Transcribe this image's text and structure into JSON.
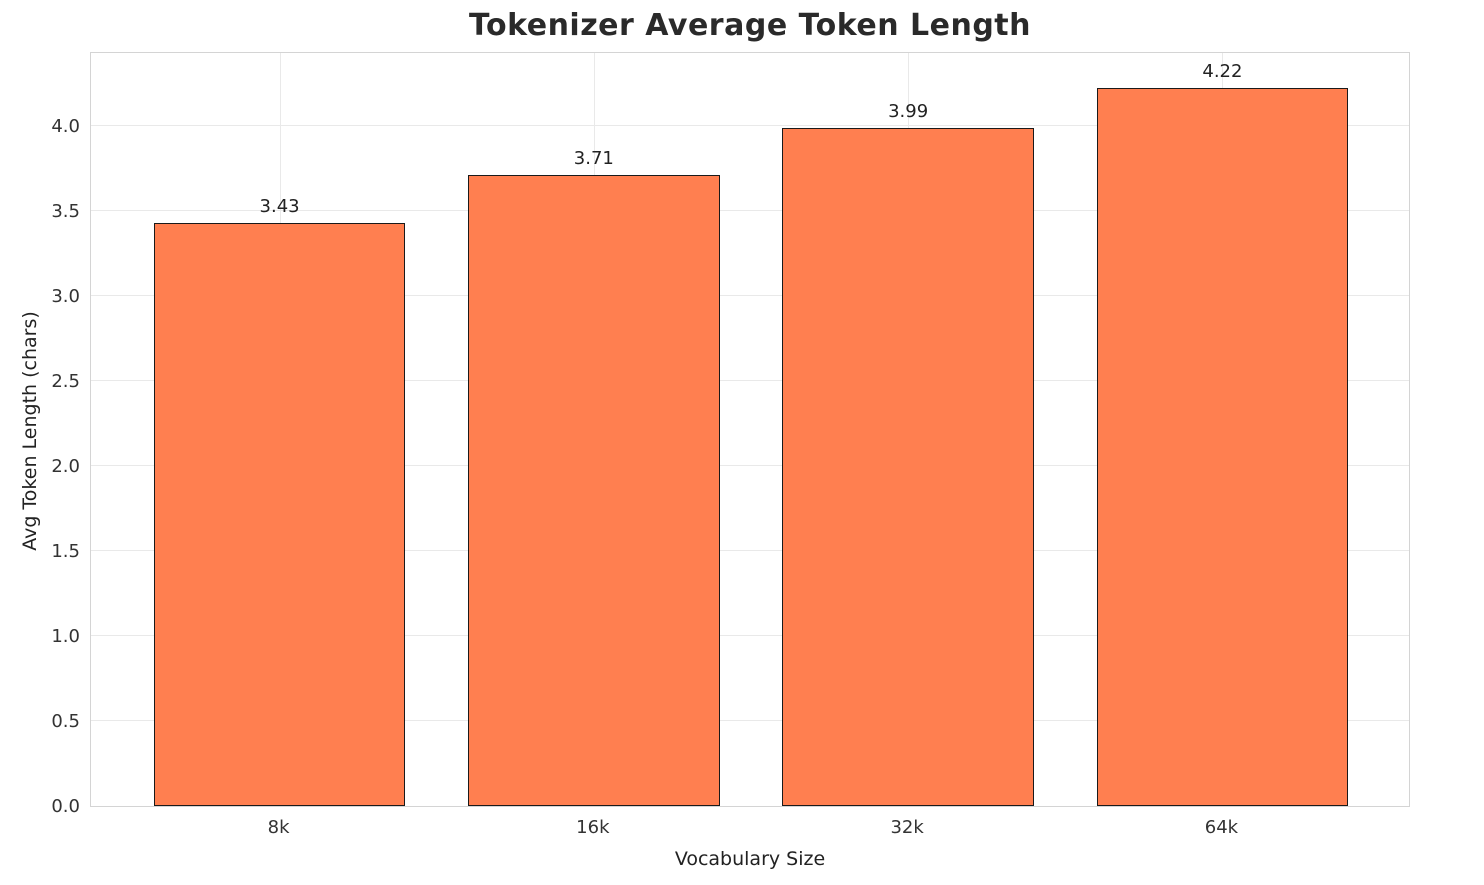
{
  "chart_data": {
    "type": "bar",
    "title": "Tokenizer Average Token Length",
    "xlabel": "Vocabulary Size",
    "ylabel": "Avg Token Length (chars)",
    "categories": [
      "8k",
      "16k",
      "32k",
      "64k"
    ],
    "values": [
      3.43,
      3.71,
      3.99,
      4.22
    ],
    "value_labels": [
      "3.43",
      "3.71",
      "3.99",
      "4.22"
    ],
    "ylim": [
      0,
      4.44
    ],
    "yticks": [
      0.0,
      0.5,
      1.0,
      1.5,
      2.0,
      2.5,
      3.0,
      3.5,
      4.0
    ],
    "ytick_labels": [
      "0.0",
      "0.5",
      "1.0",
      "1.5",
      "2.0",
      "2.5",
      "3.0",
      "3.5",
      "4.0"
    ],
    "grid": true,
    "legend": null,
    "bar_color": "#FF7F50",
    "bar_edge_color": "#1a1a1a",
    "background_color": "#ffffff",
    "grid_color": "#e9e9e9"
  }
}
